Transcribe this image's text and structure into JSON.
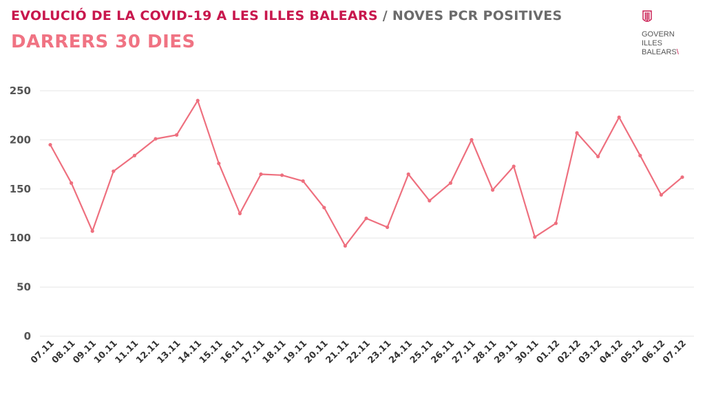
{
  "header": {
    "title_main": "EVOLUCIÓ DE LA COVID-19 A LES ILLES BALEARS",
    "title_sep": " / ",
    "title_sub": "NOVES PCR POSITIVES",
    "subtitle": "DARRERS 30 DIES"
  },
  "logo": {
    "line1": "GOVERN",
    "line2": "ILLES",
    "line3": "BALEARS"
  },
  "colors": {
    "accent": "#c8174d",
    "line": "#ee6f7e",
    "grid": "#e6e6e6"
  },
  "chart_data": {
    "type": "line",
    "title": "EVOLUCIÓ DE LA COVID-19 A LES ILLES BALEARS / NOVES PCR POSITIVES",
    "subtitle": "DARRERS 30 DIES",
    "categories": [
      "07.11",
      "08.11",
      "09.11",
      "10.11",
      "11.11",
      "12.11",
      "13.11",
      "14.11",
      "15.11",
      "16.11",
      "17.11",
      "18.11",
      "19.11",
      "20.11",
      "21.11",
      "22.11",
      "23.11",
      "24.11",
      "25.11",
      "26.11",
      "27.11",
      "28.11",
      "29.11",
      "30.11",
      "01.12",
      "02.12",
      "03.12",
      "04.12",
      "05.12",
      "06.12",
      "07.12"
    ],
    "series": [
      {
        "values": [
          195,
          156,
          107,
          168,
          184,
          201,
          205,
          240,
          176,
          125,
          165,
          164,
          158,
          131,
          92,
          120,
          111,
          165,
          138,
          156,
          200,
          149,
          173,
          101,
          115,
          207,
          183,
          223,
          184,
          144,
          162
        ]
      }
    ],
    "yticks": [
      0,
      50,
      100,
      150,
      200,
      250
    ],
    "ylim": [
      0,
      250
    ],
    "grid": true,
    "xlabel": "",
    "ylabel": ""
  }
}
